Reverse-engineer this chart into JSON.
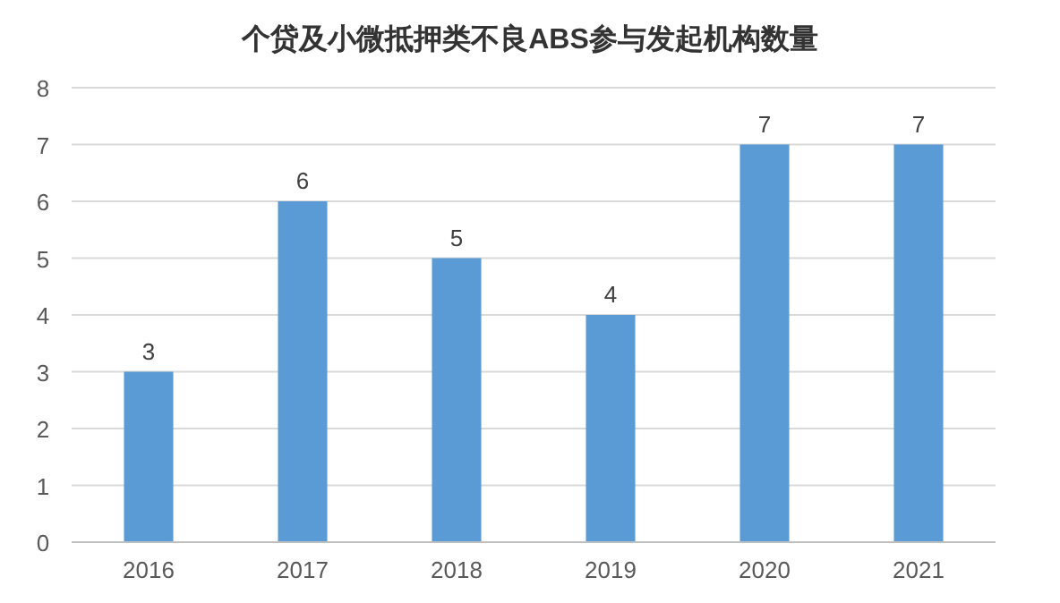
{
  "chart_data": {
    "type": "bar",
    "title": "个贷及小微抵押类不良ABS参与发起机构数量",
    "categories": [
      "2016",
      "2017",
      "2018",
      "2019",
      "2020",
      "2021"
    ],
    "values": [
      3,
      6,
      5,
      4,
      7,
      7
    ],
    "color": "#5b9bd5",
    "ylim": [
      0,
      8
    ],
    "yticks": [
      0,
      1,
      2,
      3,
      4,
      5,
      6,
      7,
      8
    ],
    "grid": "y",
    "data_labels": true
  }
}
